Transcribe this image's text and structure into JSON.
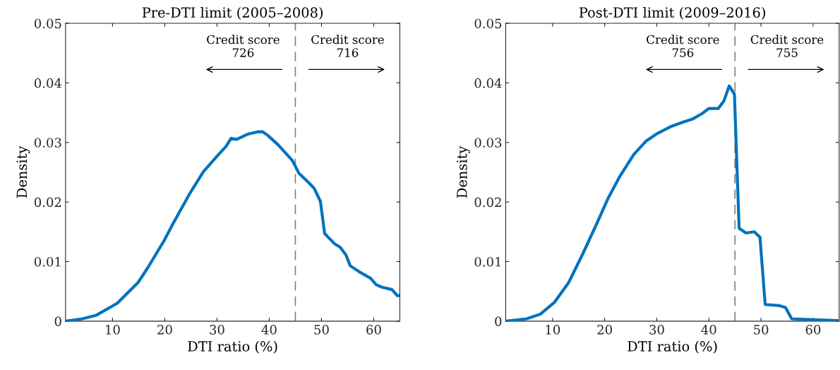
{
  "chart_data": [
    {
      "type": "line",
      "title": "Pre-DTI limit (2005–2008)",
      "xlabel": "DTI ratio (%)",
      "ylabel": "Density",
      "series": [
        {
          "color": "#0072bd",
          "x": [
            1,
            4.2,
            6.9,
            10.9,
            14.9,
            16.7,
            19.8,
            21.6,
            24.7,
            27.4,
            30.1,
            31.7,
            32.7,
            33.7,
            35.9,
            37.9,
            38.7,
            39.7,
            41.7,
            44.4,
            45.7,
            47.5,
            48.6,
            49.8,
            50.6,
            52.5,
            53.6,
            54.7,
            55.5,
            57.4,
            59.4,
            60.5,
            61.6,
            63.5,
            64.5,
            65
          ],
          "values": [
            0,
            0.0004,
            0.001,
            0.003,
            0.0065,
            0.0089,
            0.0134,
            0.0164,
            0.0213,
            0.0251,
            0.0278,
            0.0293,
            0.0307,
            0.0305,
            0.0314,
            0.0318,
            0.0318,
            0.0312,
            0.0296,
            0.027,
            0.0248,
            0.0233,
            0.0223,
            0.0201,
            0.0147,
            0.013,
            0.0124,
            0.0111,
            0.0093,
            0.0082,
            0.0072,
            0.0061,
            0.0057,
            0.0053,
            0.0043,
            0.0043
          ]
        }
      ],
      "xlim": [
        1,
        65
      ],
      "ylim": [
        0,
        0.05
      ],
      "xticks": [
        10,
        20,
        30,
        40,
        50,
        60
      ],
      "yticks": [
        0,
        0.01,
        0.02,
        0.03,
        0.04,
        0.05
      ],
      "grid": false,
      "marker": "none",
      "line_style": "solid",
      "ref_lines": [
        {
          "axis": "x",
          "value": 45,
          "color": "#808080",
          "line_style": "dashed"
        }
      ],
      "annotations": [
        "Credit score\n726",
        "Credit score\n716"
      ]
    },
    {
      "type": "line",
      "title": "Post-DTI limit (2009–2016)",
      "xlabel": "DTI ratio (%)",
      "ylabel": "Density",
      "series": [
        {
          "color": "#0072bd",
          "x": [
            1,
            5,
            7.7,
            10.4,
            13.1,
            15.8,
            18.5,
            20.7,
            22.9,
            25.6,
            27.9,
            30.1,
            32.8,
            35,
            36.8,
            38.6,
            40,
            41.8,
            42.9,
            43.9,
            44.9,
            45.8,
            47.1,
            48.7,
            49.8,
            50.8,
            53.6,
            54.7,
            55.9,
            58.7,
            64.6
          ],
          "values": [
            0,
            0.0004,
            0.0012,
            0.0032,
            0.0065,
            0.0113,
            0.0164,
            0.0207,
            0.0243,
            0.028,
            0.0302,
            0.0315,
            0.0327,
            0.0334,
            0.0339,
            0.0348,
            0.0357,
            0.0357,
            0.037,
            0.0395,
            0.0381,
            0.0156,
            0.0148,
            0.015,
            0.0141,
            0.0028,
            0.0026,
            0.0023,
            0.0004,
            0.0003,
            0.0001
          ]
        }
      ],
      "xlim": [
        1,
        65
      ],
      "ylim": [
        0,
        0.05
      ],
      "xticks": [
        10,
        20,
        30,
        40,
        50,
        60
      ],
      "yticks": [
        0,
        0.01,
        0.02,
        0.03,
        0.04,
        0.05
      ],
      "grid": false,
      "marker": "none",
      "line_style": "solid",
      "ref_lines": [
        {
          "axis": "x",
          "value": 45,
          "color": "#808080",
          "line_style": "dashed"
        }
      ],
      "annotations": [
        "Credit score\n756",
        "Credit score\n755"
      ]
    }
  ]
}
